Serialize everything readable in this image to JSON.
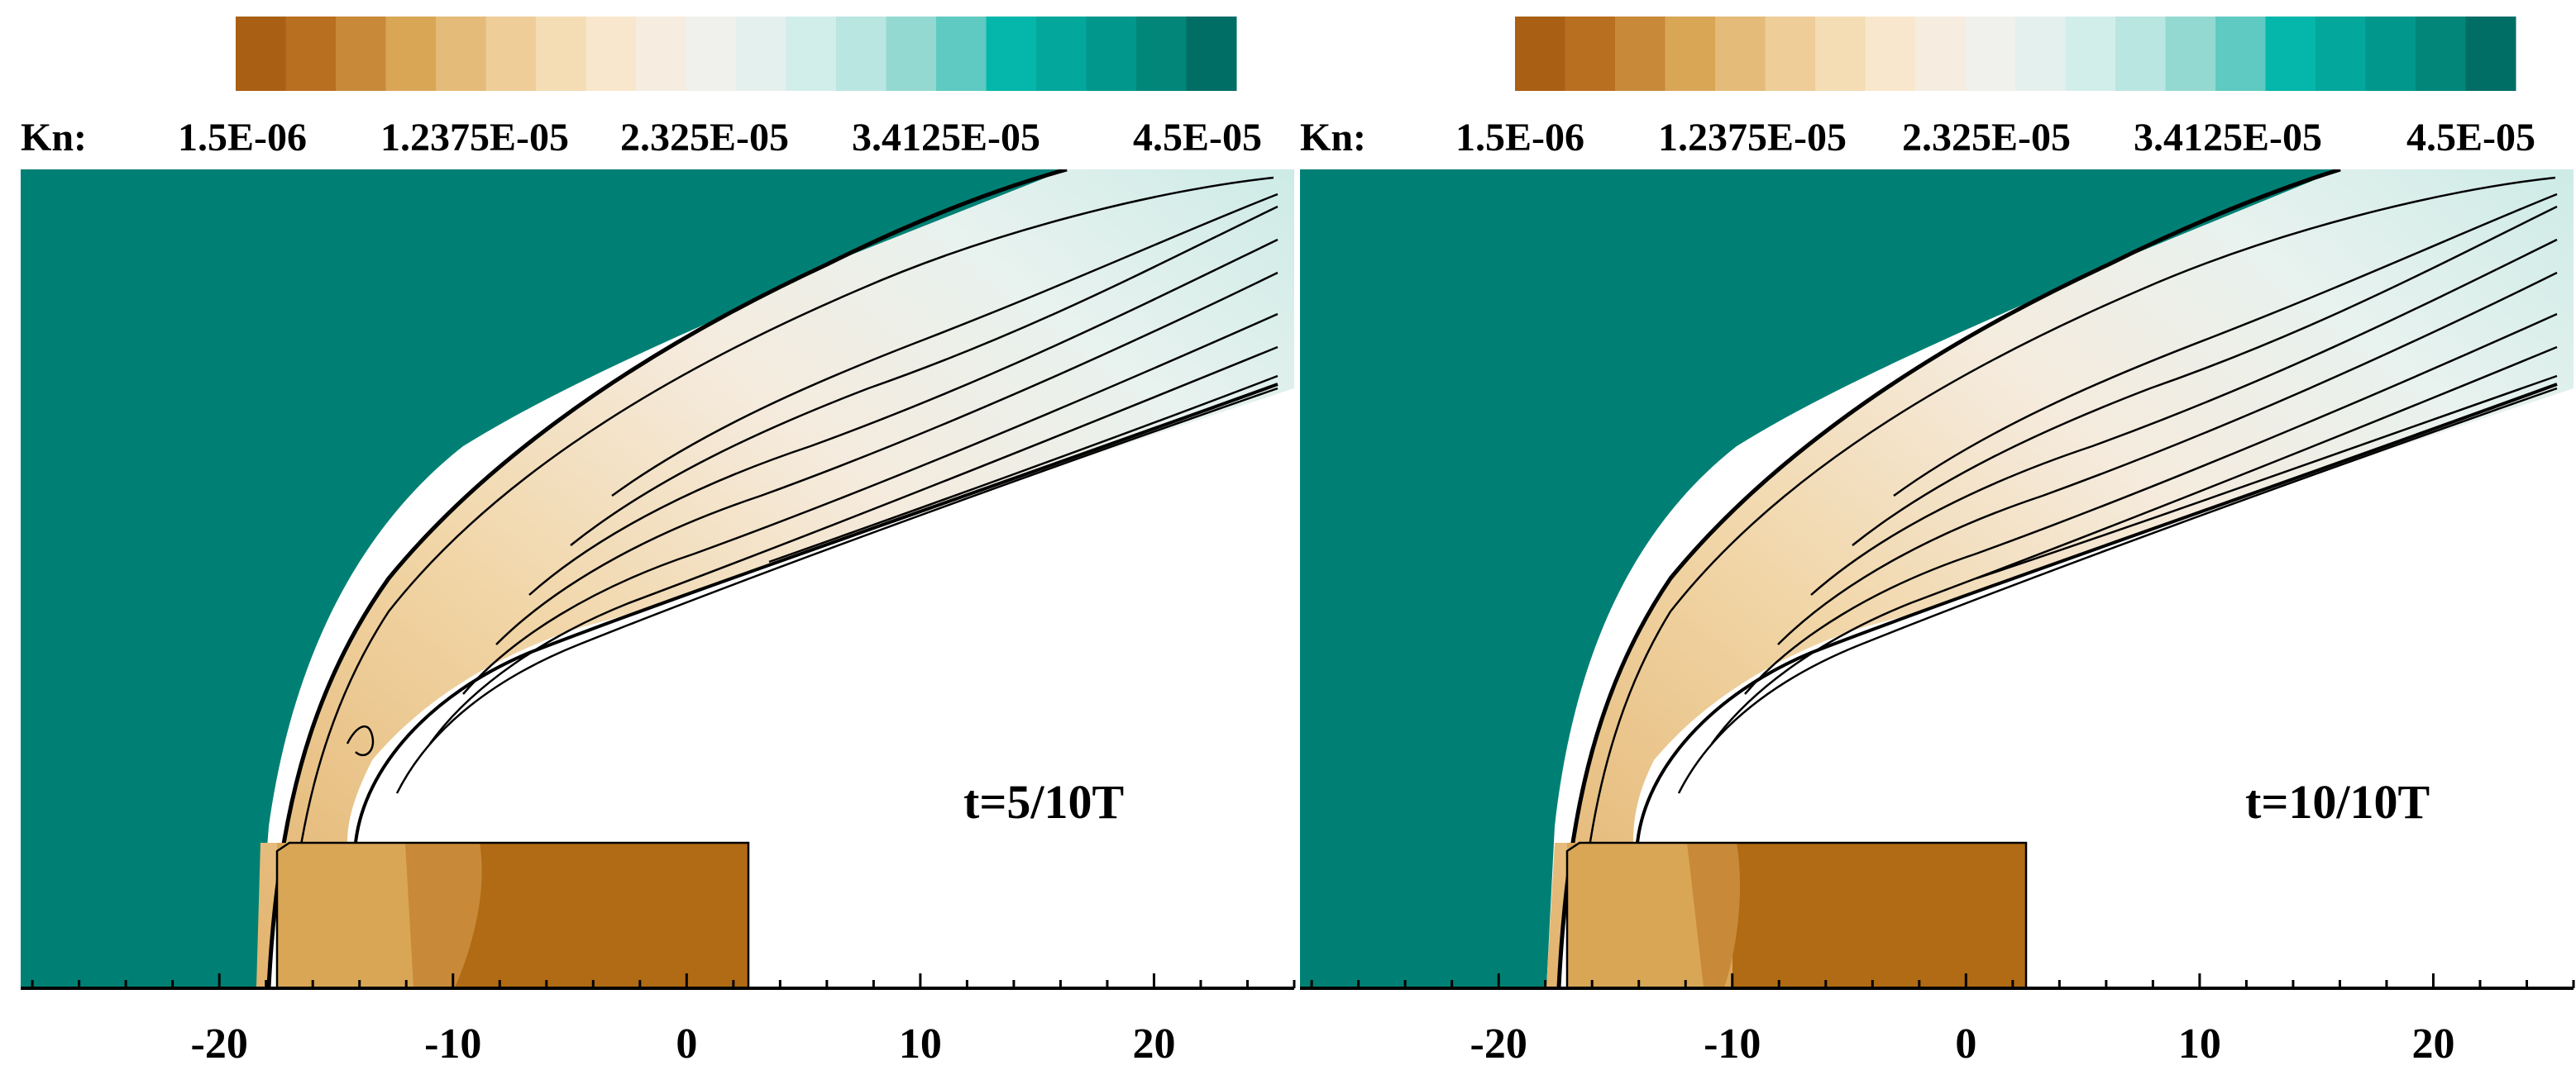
{
  "panels": [
    {
      "id": "left",
      "time_label": "t=5/10T",
      "colorbar": {
        "title": "Kn:",
        "tick_labels": [
          "1.5E-06",
          "1.2375E-05",
          "2.325E-05",
          "3.4125E-05",
          "4.5E-05"
        ]
      },
      "x_tick_labels": [
        "-20",
        "-10",
        "0",
        "10",
        "20"
      ],
      "x_ticks": [
        -20,
        -10,
        0,
        10,
        20
      ],
      "x_range": [
        -28.5,
        26
      ],
      "body_x_range": [
        -17.5,
        3
      ],
      "shock_foot_x": -17.8
    },
    {
      "id": "right",
      "time_label": "t=10/10T",
      "colorbar": {
        "title": "Kn:",
        "tick_labels": [
          "1.5E-06",
          "1.2375E-05",
          "2.325E-05",
          "3.4125E-05",
          "4.5E-05"
        ]
      },
      "x_tick_labels": [
        "-20",
        "-10",
        "0",
        "10",
        "20"
      ],
      "x_ticks": [
        -20,
        -10,
        0,
        10,
        20
      ],
      "x_range": [
        -28.5,
        26
      ],
      "body_x_range": [
        -16.0,
        3
      ],
      "shock_foot_x": -16.7
    }
  ],
  "colorbar_colors": [
    "#a95f14",
    "#b86f1f",
    "#c88a39",
    "#d9a656",
    "#e4bb78",
    "#eecd98",
    "#f4dcb4",
    "#f8e7cc",
    "#f6ede0",
    "#f0f0ed",
    "#e4f0ee",
    "#d2eeea",
    "#b9e6e1",
    "#93d9d1",
    "#5fcac1",
    "#05b6aa",
    "#03a79c",
    "#01978c",
    "#018679",
    "#016e65"
  ],
  "colors": {
    "freestream": "#008074",
    "body_fill": "#b06b14",
    "contour_line": "#000000"
  }
}
